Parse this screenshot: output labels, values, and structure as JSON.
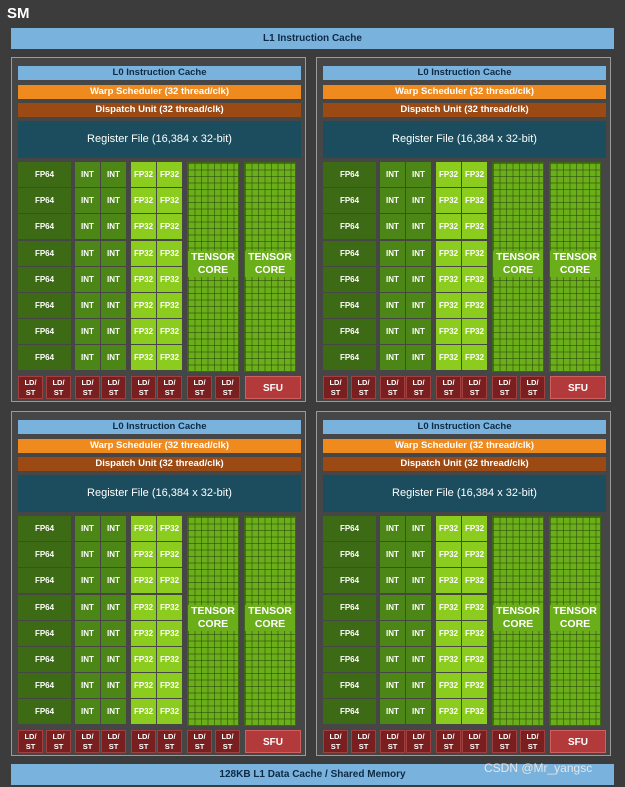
{
  "sm_title": "SM",
  "l1_instruction_cache": "L1 Instruction Cache",
  "l1_data_cache": "128KB L1 Data Cache / Shared Memory",
  "watermark": "CSDN @Mr_yangsc",
  "partition": {
    "l0_cache": "L0 Instruction Cache",
    "warp_scheduler": "Warp Scheduler (32 thread/clk)",
    "dispatch_unit": "Dispatch Unit (32 thread/clk)",
    "register_file": "Register File (16,384 x 32-bit)",
    "fp64": "FP64",
    "int": "INT",
    "fp32": "FP32",
    "tensor_line1": "TENSOR",
    "tensor_line2": "CORE",
    "ldst_line1": "LD/",
    "ldst_line2": "ST",
    "sfu": "SFU"
  },
  "counts": {
    "partitions": 4,
    "rows_per_partition": 8,
    "tensor_cores_per_partition": 2,
    "ldst_per_partition": 8
  },
  "colors": {
    "l1_cache": "#79b2dd",
    "warp_scheduler": "#ee8a1e",
    "dispatch_unit": "#9c4a14",
    "register_file": "#1b4d5e",
    "fp64": "#3d6a14",
    "int": "#4c8617",
    "fp32": "#8ccc1f",
    "tensor": "#6aae1a",
    "ldst": "#7a1f1f",
    "sfu": "#b23a3a"
  }
}
